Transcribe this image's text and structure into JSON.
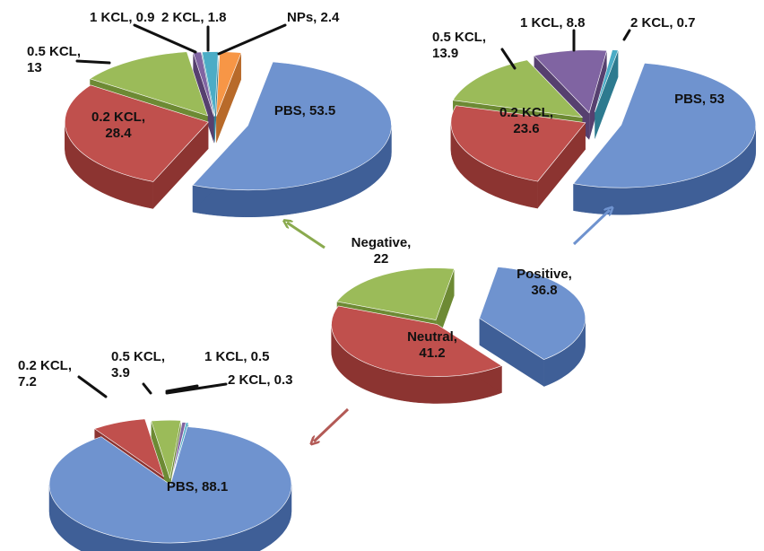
{
  "chart_data": [
    {
      "id": "center",
      "type": "pie",
      "title": "",
      "slices": [
        {
          "label": "Positive",
          "value": 36.8,
          "color": "#6f93cf",
          "side": "#3f5f97",
          "lines": [
            "Positive,",
            "36.8"
          ]
        },
        {
          "label": "Neutral",
          "value": 41.2,
          "color": "#c0504d",
          "side": "#8c3431",
          "lines": [
            "Neutral,",
            "41.2"
          ]
        },
        {
          "label": "Negative",
          "value": 22,
          "color": "#9bbb59",
          "side": "#6d8a34",
          "lines": [
            "Negative,",
            "22"
          ]
        }
      ]
    },
    {
      "id": "negative",
      "type": "pie",
      "title": "",
      "slices": [
        {
          "label": "PBS",
          "value": 53.5,
          "color": "#6f93cf",
          "side": "#3f5f97",
          "lines": [
            "PBS, 53.5"
          ]
        },
        {
          "label": "0.2 KCL",
          "value": 28.4,
          "color": "#c0504d",
          "side": "#8c3431",
          "lines": [
            "0.2 KCL,",
            "28.4"
          ]
        },
        {
          "label": "0.5 KCL",
          "value": 13,
          "color": "#9bbb59",
          "side": "#6d8a34",
          "lines": [
            "0.5 KCL,",
            "13"
          ]
        },
        {
          "label": "1 KCL",
          "value": 0.9,
          "color": "#8064a2",
          "side": "#56406f",
          "lines": [
            "1 KCL, 0.9"
          ]
        },
        {
          "label": "2 KCL",
          "value": 1.8,
          "color": "#4bacc6",
          "side": "#2d7a8f",
          "lines": [
            "2 KCL, 1.8"
          ]
        },
        {
          "label": "NPs",
          "value": 2.4,
          "color": "#f79646",
          "side": "#b86a2a",
          "lines": [
            "NPs, 2.4"
          ]
        }
      ]
    },
    {
      "id": "positive",
      "type": "pie",
      "title": "",
      "slices": [
        {
          "label": "PBS",
          "value": 53,
          "color": "#6f93cf",
          "side": "#3f5f97",
          "lines": [
            "PBS, 53"
          ]
        },
        {
          "label": "0.2 KCL",
          "value": 23.6,
          "color": "#c0504d",
          "side": "#8c3431",
          "lines": [
            "0.2 KCL,",
            "23.6"
          ]
        },
        {
          "label": "0.5 KCL",
          "value": 13.9,
          "color": "#9bbb59",
          "side": "#6d8a34",
          "lines": [
            "0.5 KCL,",
            "13.9"
          ]
        },
        {
          "label": "1 KCL",
          "value": 8.8,
          "color": "#8064a2",
          "side": "#56406f",
          "lines": [
            "1 KCL, 8.8"
          ]
        },
        {
          "label": "2 KCL",
          "value": 0.7,
          "color": "#4bacc6",
          "side": "#2d7a8f",
          "lines": [
            "2 KCL, 0.7"
          ]
        }
      ]
    },
    {
      "id": "neutral",
      "type": "pie",
      "title": "",
      "slices": [
        {
          "label": "PBS",
          "value": 88.1,
          "color": "#6f93cf",
          "side": "#3f5f97",
          "lines": [
            "PBS, 88.1"
          ]
        },
        {
          "label": "0.2 KCL",
          "value": 7.2,
          "color": "#c0504d",
          "side": "#8c3431",
          "lines": [
            "0.2 KCL,",
            "7.2"
          ]
        },
        {
          "label": "0.5 KCL",
          "value": 3.9,
          "color": "#9bbb59",
          "side": "#6d8a34",
          "lines": [
            "0.5 KCL,",
            "3.9"
          ]
        },
        {
          "label": "1 KCL",
          "value": 0.5,
          "color": "#8064a2",
          "side": "#56406f",
          "lines": [
            "1 KCL, 0.5"
          ]
        },
        {
          "label": "2 KCL",
          "value": 0.3,
          "color": "#4bacc6",
          "side": "#2d7a8f",
          "lines": [
            "2 KCL, 0.3"
          ]
        }
      ]
    }
  ],
  "arrows": [
    {
      "name": "arrow-to-negative",
      "color": "#8aaa4e"
    },
    {
      "name": "arrow-to-positive",
      "color": "#6f93cf"
    },
    {
      "name": "arrow-to-neutral",
      "color": "#b35a56"
    }
  ]
}
